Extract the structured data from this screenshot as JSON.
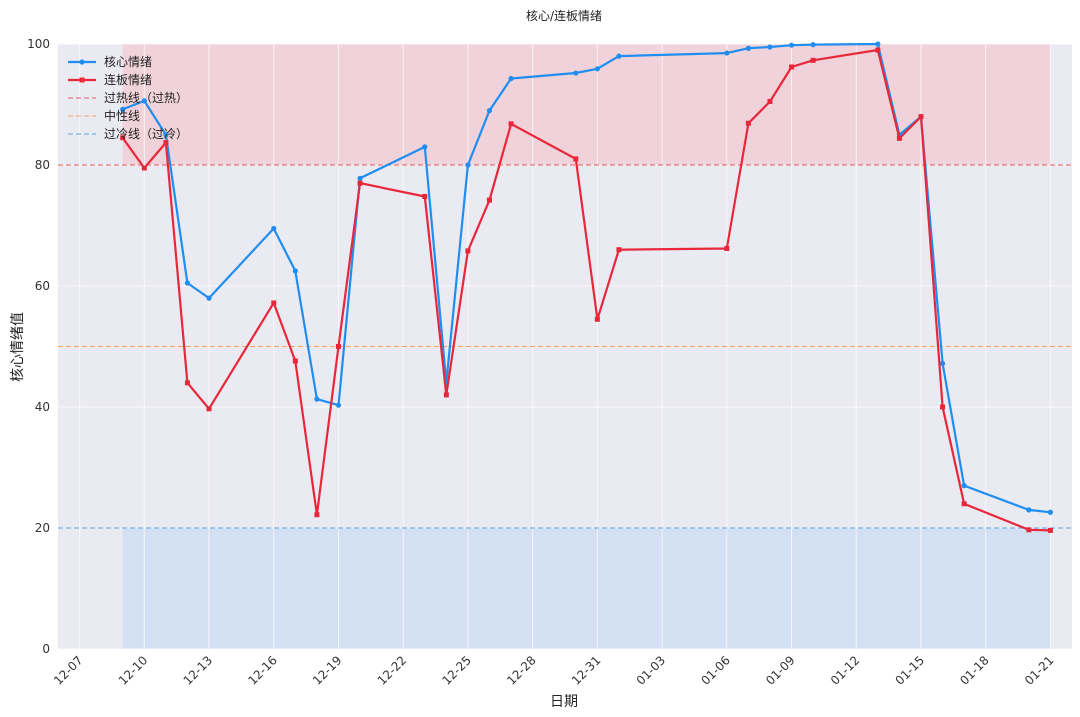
{
  "chart_data": {
    "type": "line",
    "title": "核心/连板情绪",
    "xlabel": "日期",
    "ylabel": "核心情绪值",
    "ylim": [
      0,
      100
    ],
    "y_ticks": [
      0,
      20,
      40,
      60,
      80,
      100
    ],
    "x_ticks": [
      "12-07",
      "12-10",
      "12-13",
      "12-16",
      "12-19",
      "12-22",
      "12-25",
      "12-28",
      "12-31",
      "01-03",
      "01-06",
      "01-09",
      "01-12",
      "01-15",
      "01-18",
      "01-21"
    ],
    "grid": true,
    "legend_position": "top-left",
    "bands": [
      {
        "from": 80,
        "to": 100,
        "color": "#f2c6cc"
      },
      {
        "from": 0,
        "to": 20,
        "color": "#c6daf2"
      }
    ],
    "reference_lines": [
      {
        "name": "过热线（过热）",
        "value": 80,
        "color": "#f05a5a"
      },
      {
        "name": "中性线",
        "value": 50,
        "color": "#f5a35a"
      },
      {
        "name": "过冷线（过冷）",
        "value": 20,
        "color": "#5aa5e8"
      }
    ],
    "series": [
      {
        "name": "核心情绪",
        "color": "#1f8ef0",
        "marker": "circle",
        "points": [
          [
            "12-09",
            89.2
          ],
          [
            "12-10",
            90.6
          ],
          [
            "12-11",
            85.0
          ],
          [
            "12-12",
            60.5
          ],
          [
            "12-13",
            58.0
          ],
          [
            "12-16",
            69.5
          ],
          [
            "12-17",
            62.5
          ],
          [
            "12-18",
            41.3
          ],
          [
            "12-19",
            40.3
          ],
          [
            "12-20",
            77.8
          ],
          [
            "12-23",
            83.0
          ],
          [
            "12-24",
            44.0
          ],
          [
            "12-25",
            80.0
          ],
          [
            "12-26",
            89.0
          ],
          [
            "12-27",
            94.3
          ],
          [
            "12-30",
            95.2
          ],
          [
            "12-31",
            95.9
          ],
          [
            "01-01",
            98.0
          ],
          [
            "01-06",
            98.5
          ],
          [
            "01-07",
            99.3
          ],
          [
            "01-08",
            99.5
          ],
          [
            "01-09",
            99.8
          ],
          [
            "01-10",
            99.9
          ],
          [
            "01-13",
            100.0
          ],
          [
            "01-14",
            85.0
          ],
          [
            "01-15",
            88.0
          ],
          [
            "01-16",
            47.2
          ],
          [
            "01-17",
            27.0
          ],
          [
            "01-20",
            23.0
          ],
          [
            "01-21",
            22.6
          ]
        ]
      },
      {
        "name": "连板情绪",
        "color": "#e8283a",
        "marker": "square",
        "points": [
          [
            "12-09",
            84.5
          ],
          [
            "12-10",
            79.5
          ],
          [
            "12-11",
            83.7
          ],
          [
            "12-12",
            44.0
          ],
          [
            "12-13",
            39.7
          ],
          [
            "12-16",
            57.2
          ],
          [
            "12-17",
            47.6
          ],
          [
            "12-18",
            22.2
          ],
          [
            "12-19",
            50.0
          ],
          [
            "12-20",
            77.0
          ],
          [
            "12-23",
            74.8
          ],
          [
            "12-24",
            42.0
          ],
          [
            "12-25",
            65.8
          ],
          [
            "12-26",
            74.2
          ],
          [
            "12-27",
            86.8
          ],
          [
            "12-30",
            81.0
          ],
          [
            "12-31",
            54.5
          ],
          [
            "01-01",
            66.0
          ],
          [
            "01-06",
            66.2
          ],
          [
            "01-07",
            86.9
          ],
          [
            "01-08",
            90.5
          ],
          [
            "01-09",
            96.2
          ],
          [
            "01-10",
            97.3
          ],
          [
            "01-13",
            99.0
          ],
          [
            "01-14",
            84.4
          ],
          [
            "01-15",
            88.0
          ],
          [
            "01-16",
            40.0
          ],
          [
            "01-17",
            24.0
          ],
          [
            "01-20",
            19.7
          ],
          [
            "01-21",
            19.6
          ]
        ]
      }
    ]
  }
}
